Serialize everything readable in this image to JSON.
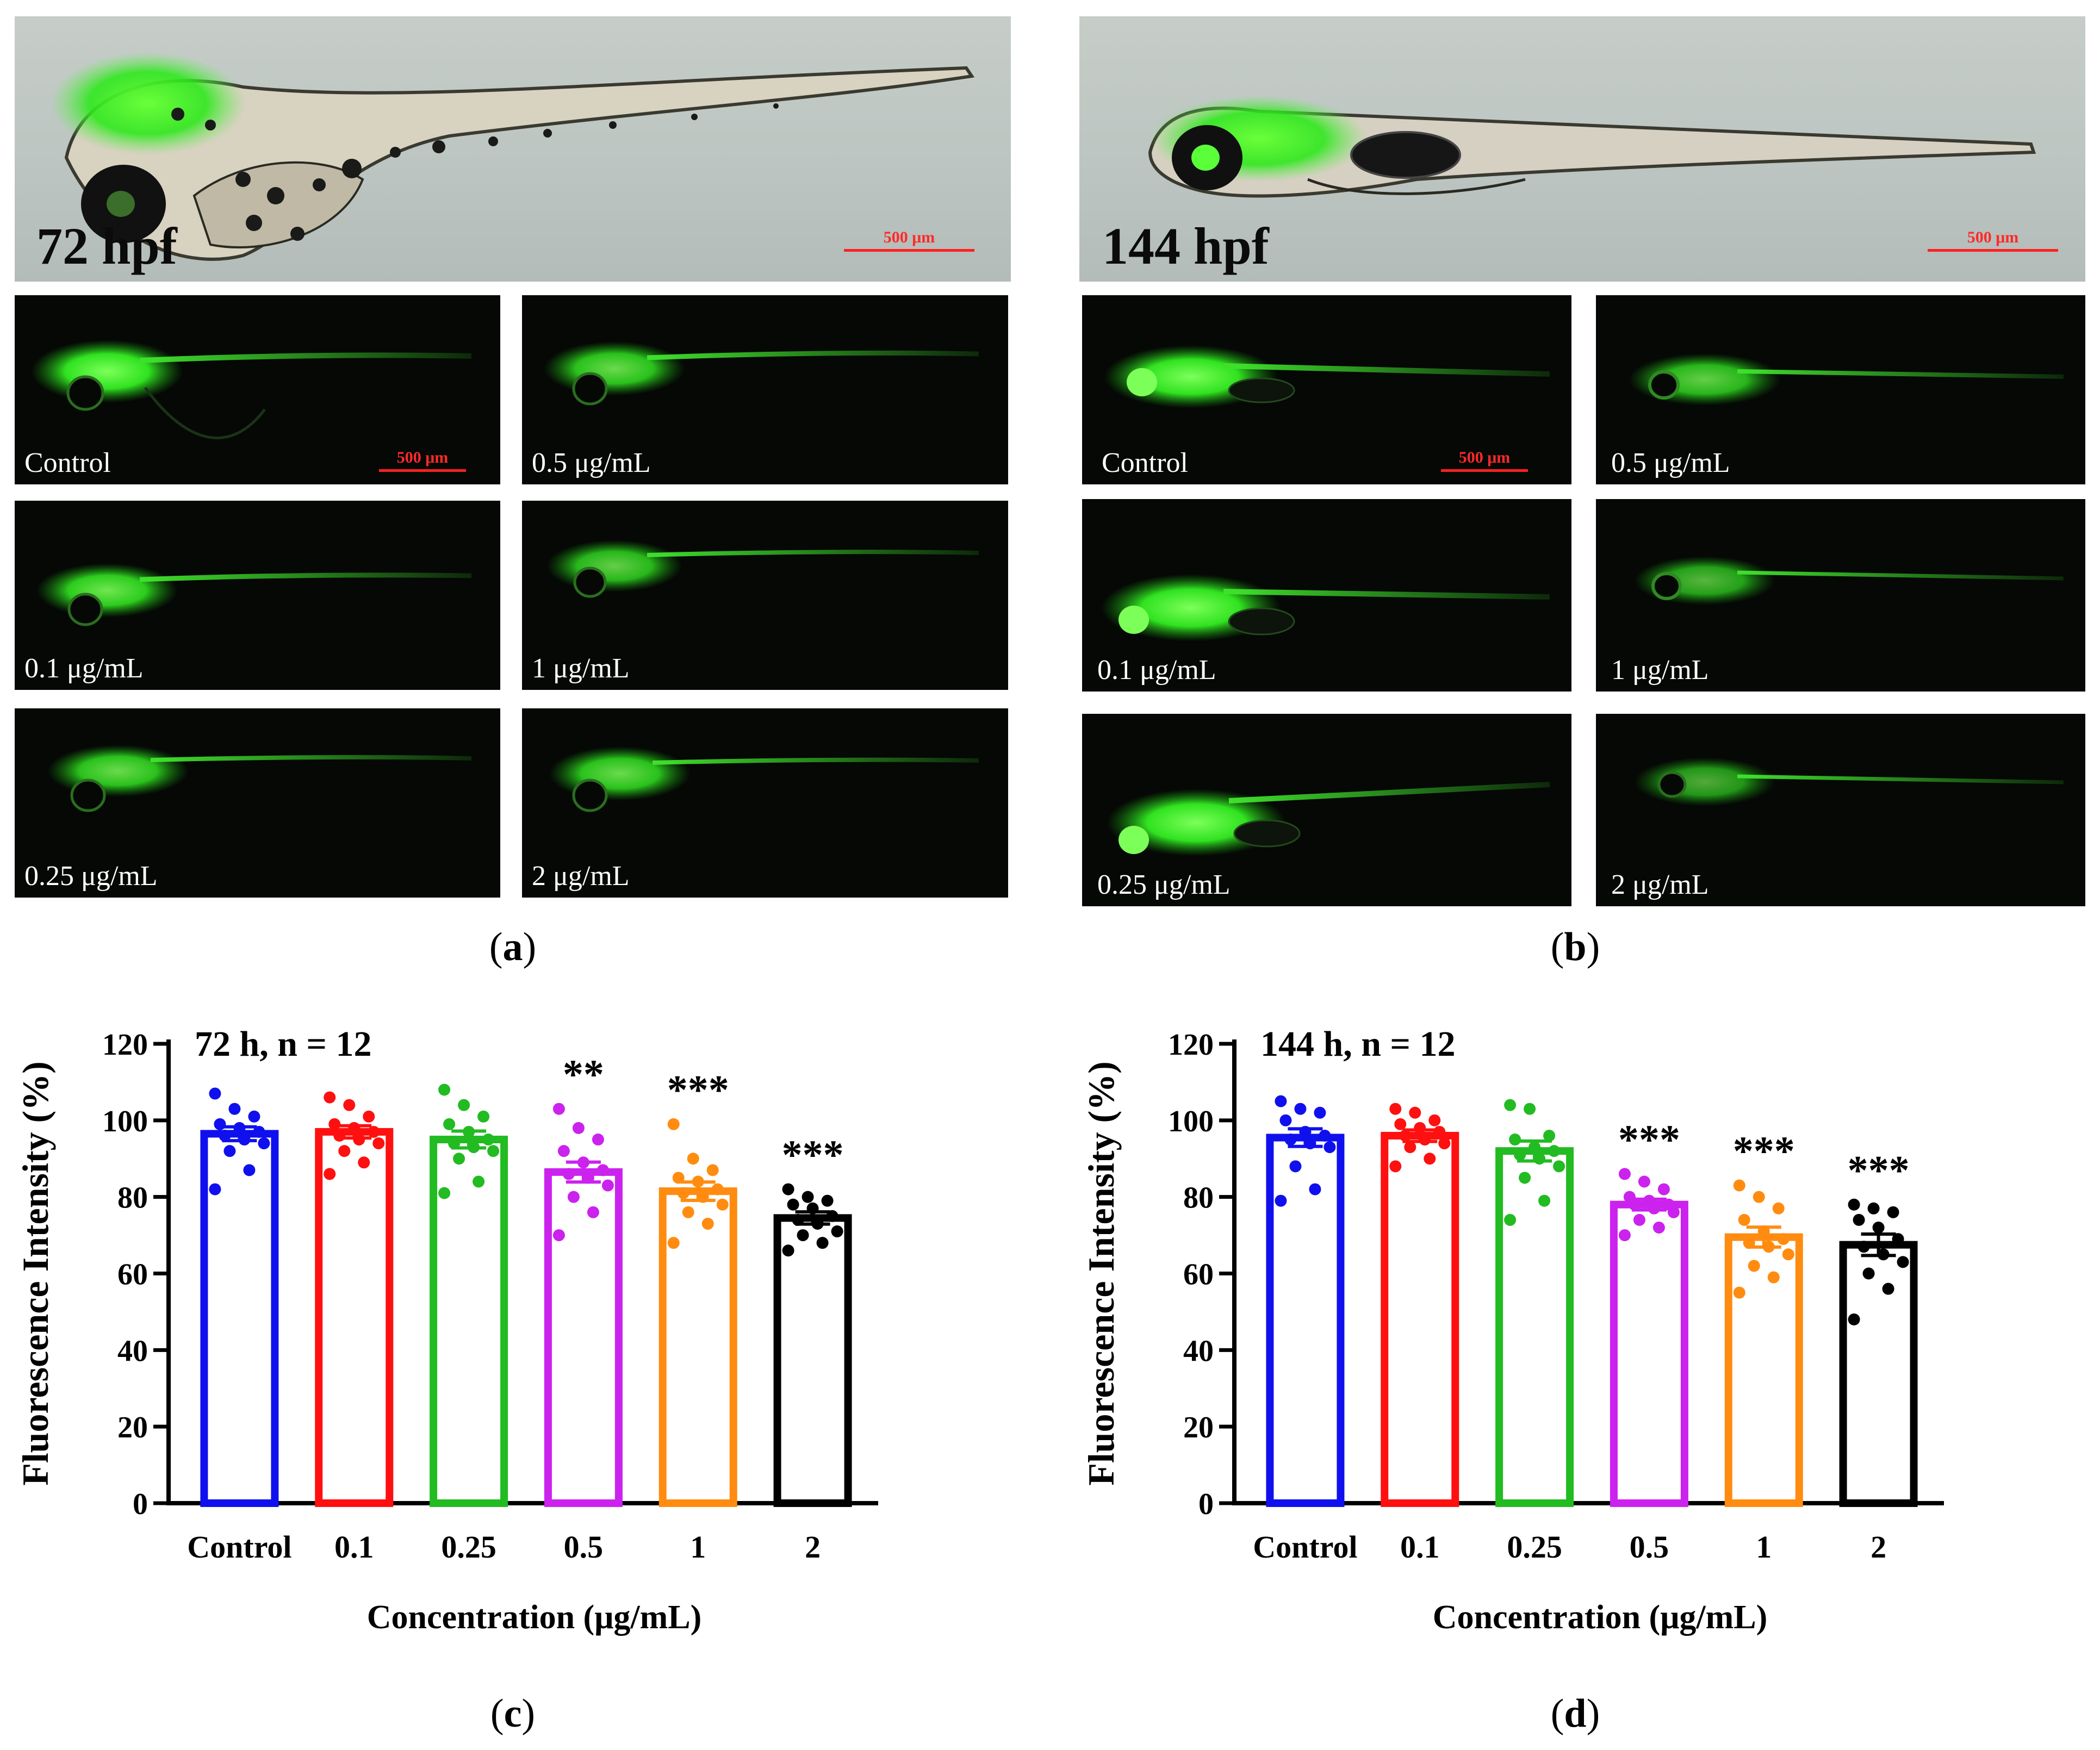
{
  "figure": {
    "panel_a": {
      "caption": "a",
      "brightfield_label": "72 hpf",
      "scale_bar": "500 μm",
      "tiles": [
        {
          "label": "Control",
          "scale_bar": "500 μm"
        },
        {
          "label": "0.5 μg/mL"
        },
        {
          "label": "0.1 μg/mL"
        },
        {
          "label": "1 μg/mL"
        },
        {
          "label": "0.25 μg/mL"
        },
        {
          "label": "2 μg/mL"
        }
      ]
    },
    "panel_b": {
      "caption": "b",
      "brightfield_label": "144 hpf",
      "scale_bar": "500 μm",
      "tiles": [
        {
          "label": "Control",
          "scale_bar": "500 μm"
        },
        {
          "label": "0.5 μg/mL"
        },
        {
          "label": "0.1 μg/mL"
        },
        {
          "label": "1 μg/mL"
        },
        {
          "label": "0.25 μg/mL"
        },
        {
          "label": "2 μg/mL"
        }
      ]
    },
    "panel_c": {
      "caption": "c"
    },
    "panel_d": {
      "caption": "d"
    }
  },
  "colors": {
    "series": [
      "#1010ee",
      "#ff1010",
      "#22bb22",
      "#cc22ee",
      "#ff8c10",
      "#000000"
    ],
    "fluorescence_green": "#4cff3c"
  },
  "chart_data": [
    {
      "type": "bar",
      "annotation": "72 h, n = 12",
      "xlabel": "Concentration (μg/mL)",
      "ylabel": "Fluorescence Intensity (%)",
      "ylim": [
        0,
        120
      ],
      "yticks": [
        "0",
        "20",
        "40",
        "60",
        "80",
        "100",
        "120"
      ],
      "categories": [
        "Control",
        "0.1",
        "0.25",
        "0.5",
        "1",
        "2"
      ],
      "values": [
        96.5,
        97,
        95,
        86.5,
        81.5,
        74.5
      ],
      "sem": [
        1.8,
        1.6,
        2.2,
        2.6,
        2.4,
        1.6
      ],
      "significance": [
        "",
        "",
        "",
        "**",
        "***",
        "***"
      ],
      "points": [
        [
          107,
          103,
          101,
          99,
          98,
          97,
          96,
          95,
          94,
          92,
          87,
          82
        ],
        [
          106,
          104,
          101,
          99,
          98,
          97,
          96,
          95,
          94,
          92,
          89,
          86
        ],
        [
          108,
          104,
          101,
          99,
          97,
          95,
          94,
          93,
          92,
          90,
          84,
          81
        ],
        [
          103,
          98,
          95,
          92,
          89,
          87,
          86,
          85,
          83,
          80,
          76,
          70
        ],
        [
          99,
          90,
          87,
          85,
          84,
          82,
          81,
          80,
          78,
          76,
          73,
          68
        ],
        [
          82,
          80,
          79,
          78,
          77,
          75,
          74,
          73,
          71,
          70,
          68,
          66
        ]
      ]
    },
    {
      "type": "bar",
      "annotation": "144 h, n = 12",
      "xlabel": "Concentration (μg/mL)",
      "ylabel": "Fluorescence Intensity (%)",
      "ylim": [
        0,
        120
      ],
      "yticks": [
        "0",
        "20",
        "40",
        "60",
        "80",
        "100",
        "120"
      ],
      "categories": [
        "Control",
        "0.1",
        "0.25",
        "0.5",
        "1",
        "2"
      ],
      "values": [
        95.5,
        96,
        92,
        78,
        69.5,
        67.5
      ],
      "sem": [
        2.3,
        1.5,
        2.6,
        1.4,
        2.6,
        2.8
      ],
      "significance": [
        "",
        "",
        "",
        "***",
        "***",
        "***"
      ],
      "points": [
        [
          105,
          103,
          102,
          100,
          97,
          96,
          95,
          94,
          93,
          88,
          82,
          79
        ],
        [
          103,
          102,
          100,
          99,
          98,
          97,
          96,
          95,
          94,
          93,
          90,
          88
        ],
        [
          104,
          103,
          96,
          95,
          93,
          92,
          91,
          90,
          88,
          85,
          79,
          74
        ],
        [
          86,
          84,
          82,
          80,
          79,
          78,
          78,
          77,
          76,
          74,
          72,
          70
        ],
        [
          83,
          80,
          77,
          74,
          71,
          69,
          68,
          67,
          65,
          62,
          59,
          55
        ],
        [
          78,
          77,
          76,
          74,
          72,
          69,
          67,
          65,
          63,
          60,
          56,
          48
        ]
      ]
    }
  ]
}
